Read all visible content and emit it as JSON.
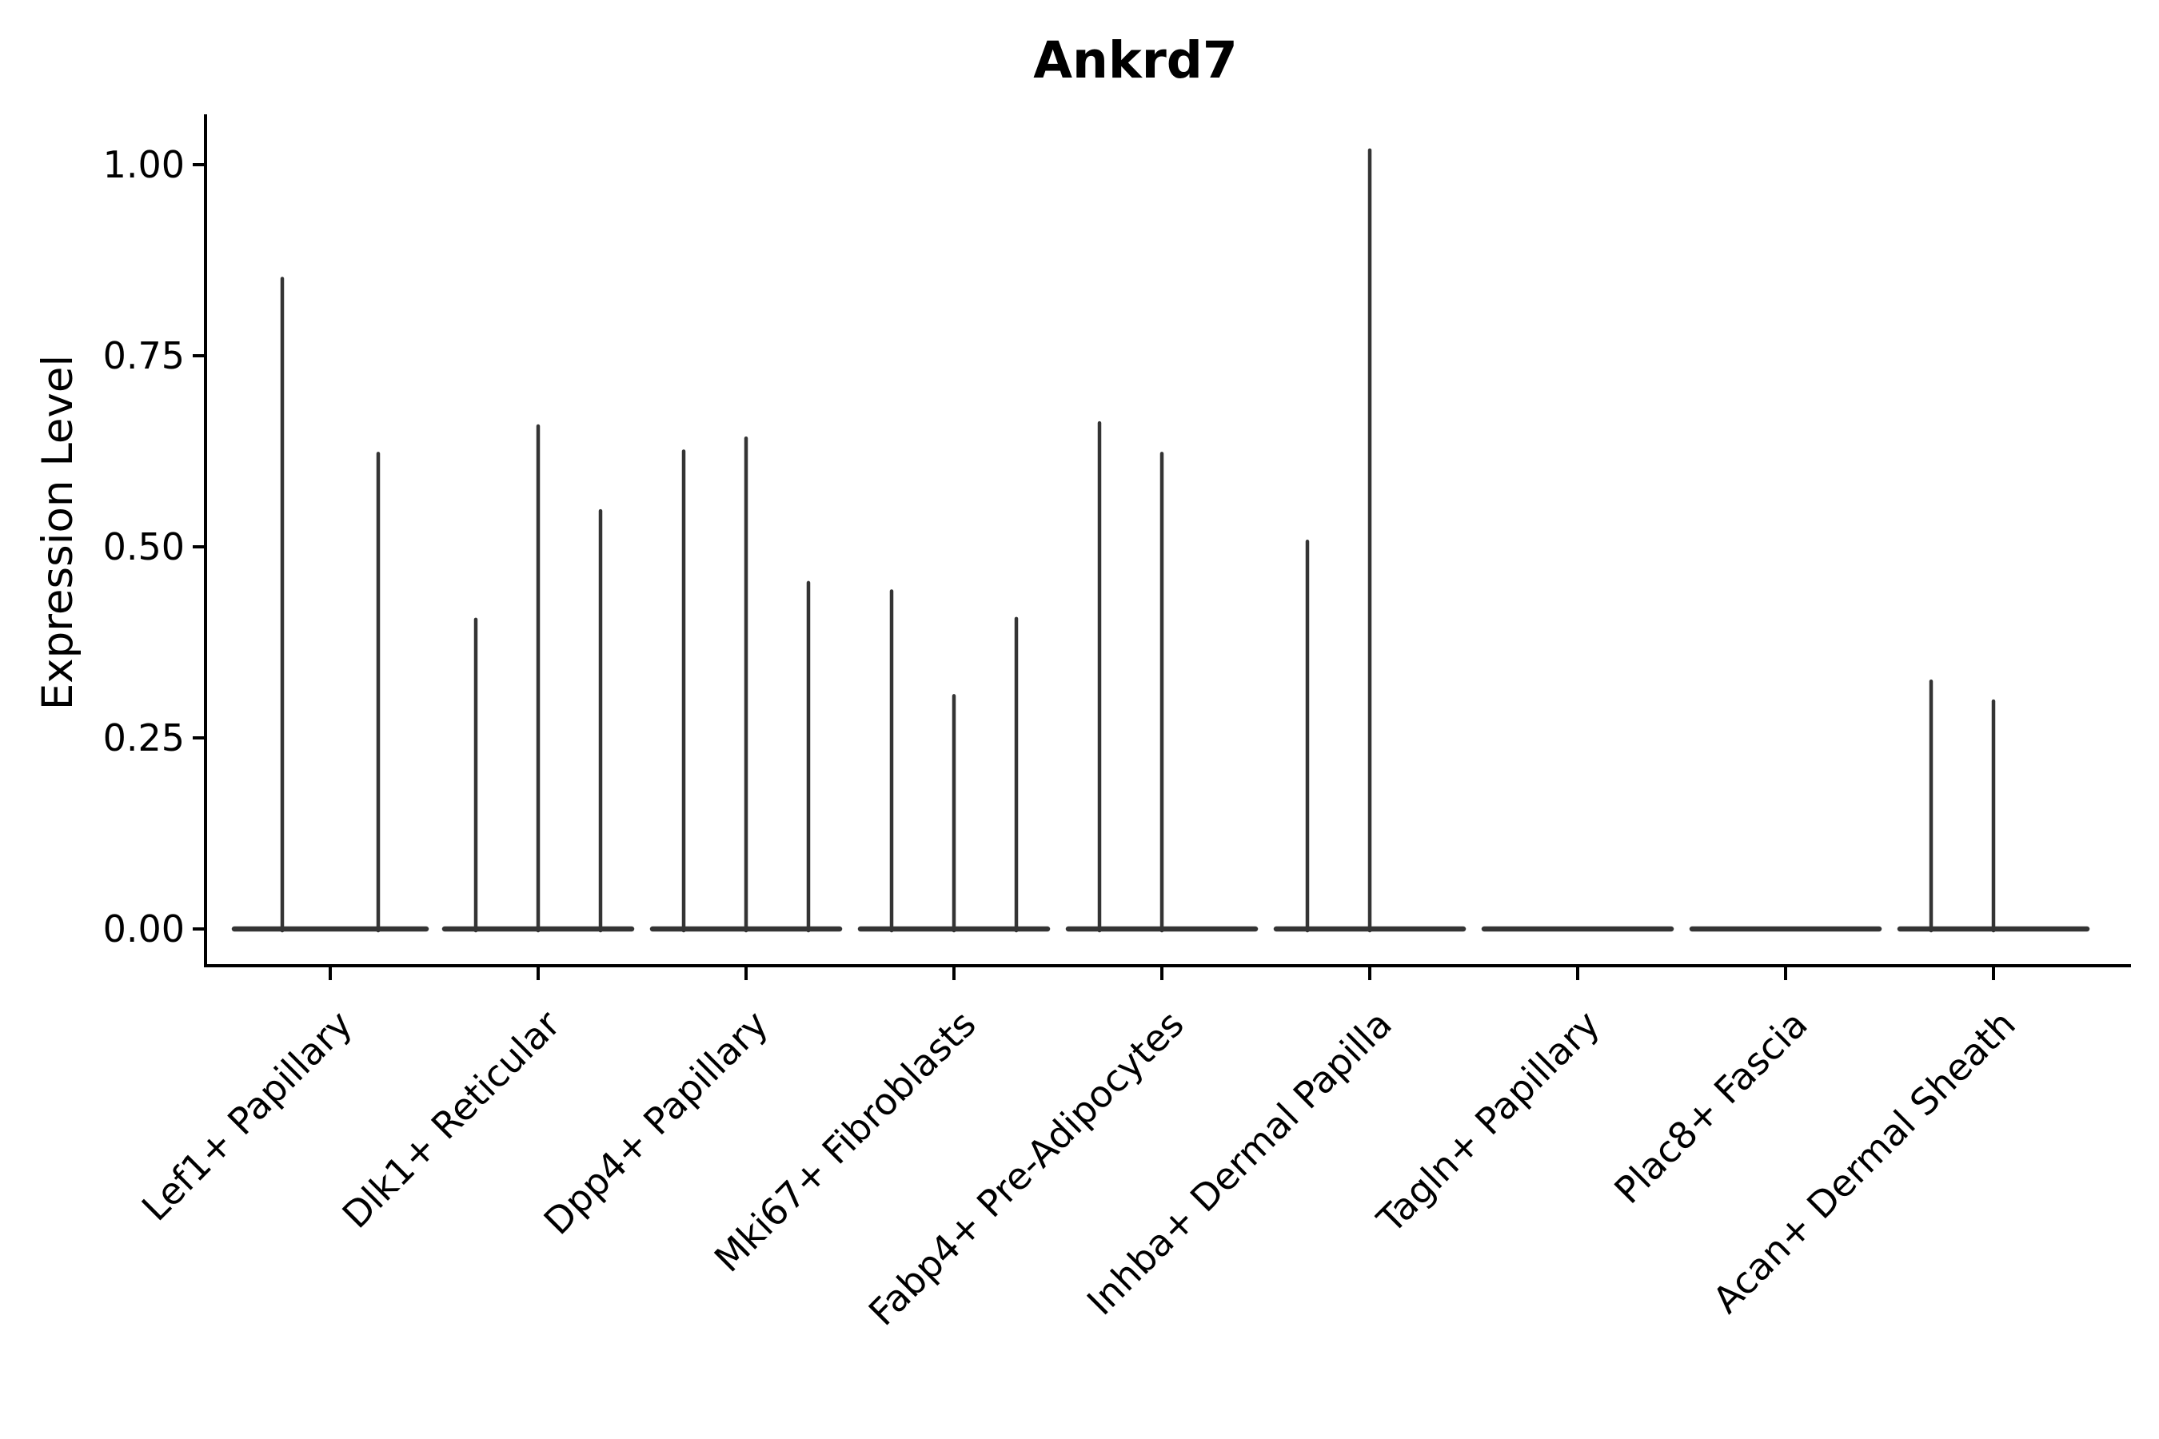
{
  "chart_data": {
    "type": "violin",
    "title": "Ankrd7",
    "xlabel": "",
    "ylabel": "Expression Level",
    "yticks": [
      "0.00",
      "0.25",
      "0.50",
      "0.75",
      "1.00"
    ],
    "ytick_values": [
      0,
      0.25,
      0.5,
      0.75,
      1.0
    ],
    "ylim": [
      0,
      1.07
    ],
    "grid": false,
    "legend_position": "none",
    "background_color": "#ffffff",
    "violin_line_color": "#343434",
    "axis_color": "#000000",
    "categories": [
      "Lef1+ Papillary",
      "Dlk1+ Reticular",
      "Dpp4+ Papillary",
      "Mki67+ Fibroblasts",
      "Fabp4+ Pre-Adipocytes",
      "Inhba+ Dermal Papilla",
      "Tagln+ Papillary",
      "Plac8+ Fascia",
      "Acan+ Dermal Sheath"
    ],
    "violin_maxima": [
      [
        0.851,
        0.622
      ],
      [
        0.405,
        0.658,
        0.547
      ],
      [
        0.625,
        0.642,
        0.453
      ],
      [
        0.442,
        0.305,
        0.406
      ],
      [
        0.662,
        0.622,
        0
      ],
      [
        0.507,
        1.019,
        0
      ],
      [
        0,
        0,
        0
      ],
      [
        0,
        0,
        0
      ],
      [
        0.324,
        0.298,
        0
      ]
    ],
    "violin_maxima_note": "Each category shows narrow dodged violins (expression near zero for most cells); value is the top of each violin spike in Expression Level units; 0 = flat violin at baseline."
  }
}
